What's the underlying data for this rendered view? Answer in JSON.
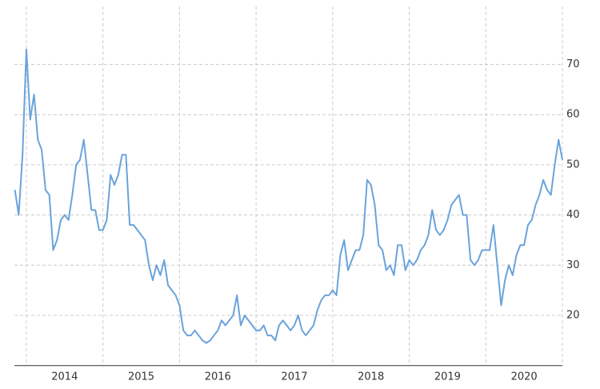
{
  "chart_data": {
    "type": "line",
    "x": [
      2013.85,
      2013.9,
      2013.95,
      2014.0,
      2014.05,
      2014.1,
      2014.15,
      2014.2,
      2014.25,
      2014.3,
      2014.35,
      2014.4,
      2014.45,
      2014.5,
      2014.55,
      2014.6,
      2014.65,
      2014.7,
      2014.75,
      2014.8,
      2014.85,
      2014.9,
      2014.95,
      2015.0,
      2015.05,
      2015.1,
      2015.15,
      2015.2,
      2015.25,
      2015.3,
      2015.35,
      2015.4,
      2015.45,
      2015.5,
      2015.55,
      2015.6,
      2015.65,
      2015.7,
      2015.75,
      2015.8,
      2015.85,
      2015.9,
      2015.95,
      2016.0,
      2016.05,
      2016.1,
      2016.15,
      2016.2,
      2016.25,
      2016.3,
      2016.35,
      2016.4,
      2016.45,
      2016.5,
      2016.55,
      2016.6,
      2016.65,
      2016.7,
      2016.75,
      2016.8,
      2016.85,
      2016.9,
      2016.95,
      2017.0,
      2017.05,
      2017.1,
      2017.15,
      2017.2,
      2017.25,
      2017.3,
      2017.35,
      2017.4,
      2017.45,
      2017.5,
      2017.55,
      2017.6,
      2017.65,
      2017.7,
      2017.75,
      2017.8,
      2017.85,
      2017.9,
      2017.95,
      2018.0,
      2018.05,
      2018.1,
      2018.15,
      2018.2,
      2018.25,
      2018.3,
      2018.35,
      2018.4,
      2018.45,
      2018.5,
      2018.55,
      2018.6,
      2018.65,
      2018.7,
      2018.75,
      2018.8,
      2018.85,
      2018.9,
      2018.95,
      2019.0,
      2019.05,
      2019.1,
      2019.15,
      2019.2,
      2019.25,
      2019.3,
      2019.35,
      2019.4,
      2019.45,
      2019.5,
      2019.55,
      2019.6,
      2019.65,
      2019.7,
      2019.75,
      2019.8,
      2019.85,
      2019.9,
      2019.95,
      2020.0,
      2020.05,
      2020.1,
      2020.15,
      2020.2,
      2020.25,
      2020.3,
      2020.35,
      2020.4,
      2020.45,
      2020.5,
      2020.55,
      2020.6,
      2020.65,
      2020.7,
      2020.75,
      2020.8,
      2020.85,
      2020.9,
      2020.95,
      2021.0
    ],
    "series": [
      {
        "color": "#6aa3db",
        "values": [
          45,
          40,
          52,
          73,
          59,
          64,
          55,
          53,
          45,
          44,
          33,
          35,
          39,
          40,
          39,
          44,
          50,
          51,
          55,
          48,
          41,
          41,
          37,
          37,
          39,
          48,
          46,
          48,
          52,
          52,
          38,
          38,
          37,
          36,
          35,
          30,
          27,
          30,
          28,
          31,
          26,
          25,
          24,
          22,
          17,
          16,
          16,
          17,
          16,
          15,
          14.5,
          15,
          16,
          17,
          19,
          18,
          19,
          20,
          24,
          18,
          20,
          19,
          18,
          17,
          17,
          18,
          16,
          16,
          15,
          18,
          19,
          18,
          17,
          18,
          20,
          17,
          16,
          17,
          18,
          21,
          23,
          24,
          24,
          25,
          24,
          32,
          35,
          29,
          31,
          33,
          33,
          36,
          47,
          46,
          42,
          34,
          33,
          29,
          30,
          28,
          34,
          34,
          29,
          31,
          30,
          31,
          33,
          34,
          36,
          41,
          37,
          36,
          37,
          39,
          42,
          43,
          44,
          40,
          40,
          31,
          30,
          31,
          33,
          33,
          33,
          38,
          30,
          22,
          27,
          30,
          28,
          32,
          34,
          34,
          38,
          39,
          42,
          44,
          47,
          45,
          44,
          50,
          55,
          51
        ]
      }
    ],
    "xlim": [
      2013.85,
      2021.0
    ],
    "xticks": [
      {
        "value": 2014.5,
        "label": "2014"
      },
      {
        "value": 2015.5,
        "label": "2015"
      },
      {
        "value": 2016.5,
        "label": "2016"
      },
      {
        "value": 2017.5,
        "label": "2017"
      },
      {
        "value": 2018.5,
        "label": "2018"
      },
      {
        "value": 2019.5,
        "label": "2019"
      },
      {
        "value": 2020.5,
        "label": "2020"
      }
    ],
    "xgrid": [
      2014,
      2015,
      2016,
      2017,
      2018,
      2019,
      2020,
      2021
    ],
    "ylim": [
      10,
      80
    ],
    "yticks": [
      20,
      30,
      40,
      50,
      60,
      70
    ],
    "grid": true
  }
}
